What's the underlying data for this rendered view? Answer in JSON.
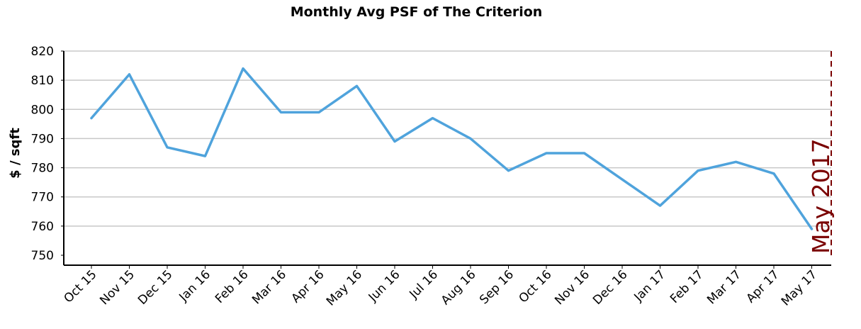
{
  "chart_data": {
    "type": "line",
    "title": "Monthly Avg PSF of The Criterion",
    "xlabel": "",
    "ylabel": "$ / sqft",
    "ylim": [
      750,
      820
    ],
    "yticks": [
      750,
      760,
      770,
      780,
      790,
      800,
      810,
      820
    ],
    "grid": true,
    "categories": [
      "Oct 15",
      "Nov 15",
      "Dec 15",
      "Jan 16",
      "Feb 16",
      "Mar 16",
      "Apr 16",
      "May 16",
      "Jun 16",
      "Jul 16",
      "Aug 16",
      "Sep 16",
      "Oct 16",
      "Nov 16",
      "Dec 16",
      "Jan 17",
      "Feb 17",
      "Mar 17",
      "Apr 17",
      "May 17"
    ],
    "series": [
      {
        "values": [
          797,
          812,
          787,
          784,
          814,
          799,
          799,
          808,
          789,
          797,
          790,
          779,
          785,
          785,
          776,
          767,
          779,
          782,
          778,
          759
        ],
        "color": "#4fa3dc"
      }
    ],
    "annotations": [
      {
        "label": "May 2017",
        "category": "May 17",
        "style": "dashed-vertical-line",
        "color": "#7a0000"
      }
    ]
  }
}
